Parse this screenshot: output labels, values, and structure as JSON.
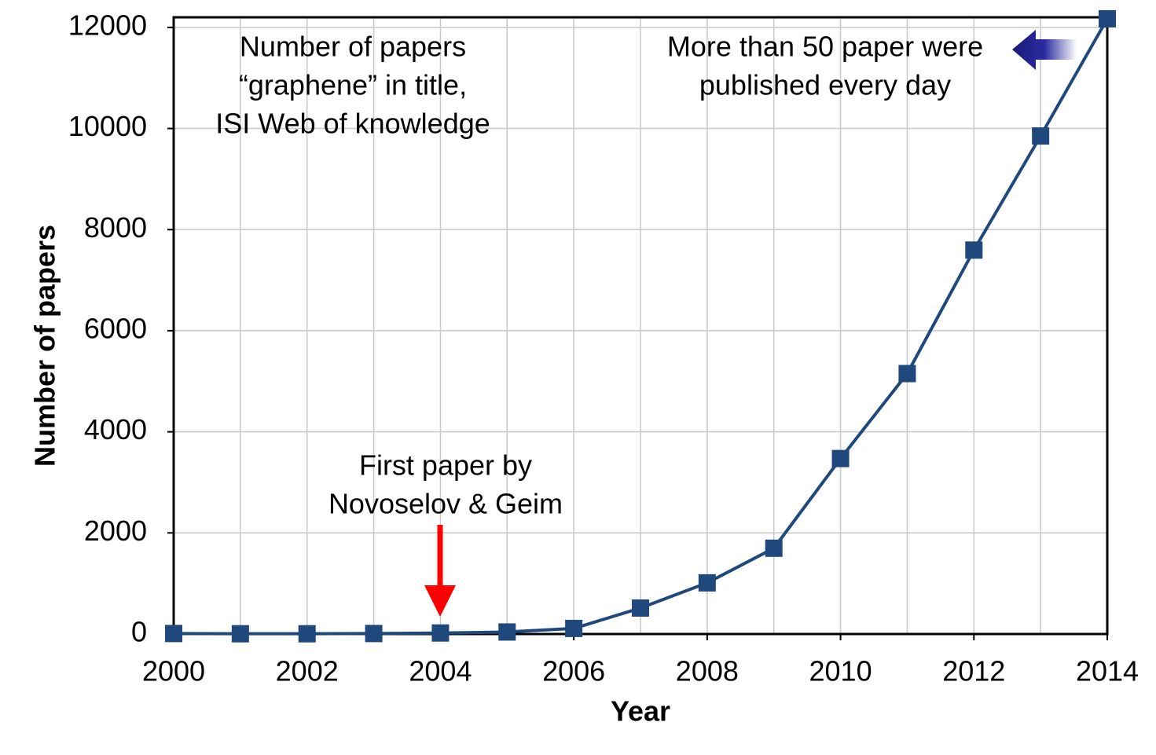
{
  "chart_data": {
    "type": "line",
    "x": [
      2000,
      2001,
      2002,
      2003,
      2004,
      2005,
      2006,
      2007,
      2008,
      2009,
      2010,
      2011,
      2012,
      2013,
      2014
    ],
    "series": [
      {
        "name": "Number of papers",
        "color": "#1f497d",
        "values": [
          10,
          5,
          5,
          10,
          20,
          40,
          110,
          514,
          1012,
          1697,
          3471,
          5152,
          7595,
          9852,
          12170
        ]
      }
    ],
    "xlim": [
      2000,
      2014
    ],
    "xticks": [
      2000,
      2002,
      2004,
      2006,
      2008,
      2010,
      2012,
      2014
    ],
    "ylim": [
      0,
      12200
    ],
    "yticks": [
      0,
      2000,
      4000,
      6000,
      8000,
      10000,
      12000
    ],
    "xlabel": "Year",
    "ylabel": "Number of papers",
    "grid": true,
    "annotations": [
      [
        "Number of papers",
        "“graphene” in title,",
        "ISI Web of knowledge"
      ],
      [
        "First paper by",
        "Novoselov & Geim"
      ],
      [
        "More than 50 paper were",
        "published every day"
      ]
    ]
  }
}
